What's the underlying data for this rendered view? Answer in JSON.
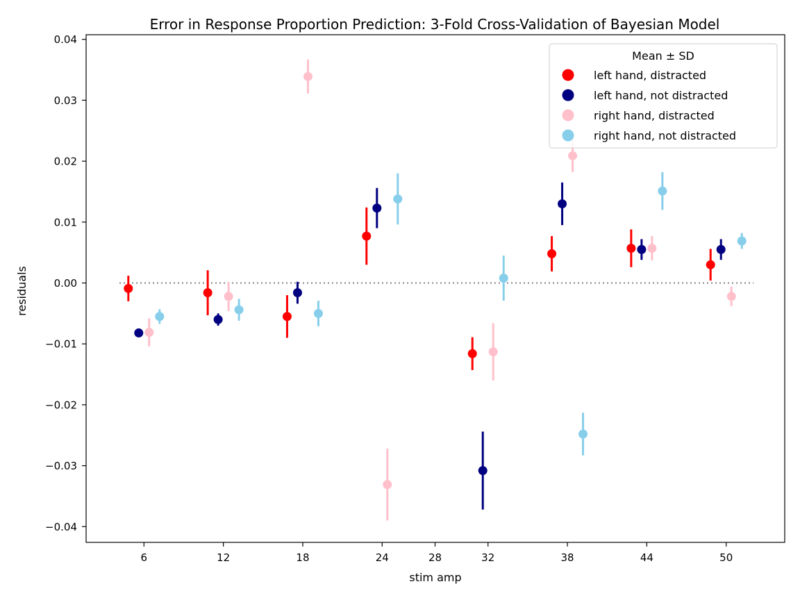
{
  "chart_data": {
    "type": "errorbar",
    "title": "Error in Response Proportion Prediction: 3-Fold Cross-Validation of Bayesian Model",
    "xlabel": "stim amp",
    "ylabel": "residuals",
    "x_ticks": [
      "6",
      "12",
      "18",
      "24",
      "28",
      "32",
      "38",
      "44",
      "50"
    ],
    "y_ticks": [
      "−0.04",
      "−0.03",
      "−0.02",
      "−0.01",
      "0.00",
      "0.01",
      "0.02",
      "0.03",
      "0.04"
    ],
    "y_tick_values": [
      -0.04,
      -0.03,
      -0.02,
      -0.01,
      0.0,
      0.01,
      0.02,
      0.03,
      0.04
    ],
    "ylim": [
      -0.0425,
      0.0405
    ],
    "reference_line": 0.0,
    "legend": {
      "title": "Mean ± SD",
      "position": "top-right"
    },
    "series": [
      {
        "name": "left hand, distracted",
        "color": "#ff0000",
        "x": [
          6,
          12,
          18,
          24,
          32,
          38,
          44,
          50
        ],
        "mean": [
          -0.0009,
          -0.0016,
          -0.0055,
          0.0077,
          -0.0116,
          0.0048,
          0.0057,
          0.003
        ],
        "sd": [
          0.0021,
          0.0037,
          0.0035,
          0.0047,
          0.0027,
          0.0029,
          0.0031,
          0.0026
        ]
      },
      {
        "name": "left hand, not distracted",
        "color": "#000080",
        "x": [
          6,
          12,
          18,
          24,
          32,
          38,
          44,
          50
        ],
        "mean": [
          -0.0082,
          -0.006,
          -0.0016,
          0.0123,
          -0.0308,
          0.013,
          0.0055,
          0.0055
        ],
        "sd": [
          0.0,
          0.001,
          0.0018,
          0.0033,
          0.0064,
          0.0035,
          0.0017,
          0.0017
        ]
      },
      {
        "name": "right hand, distracted",
        "color": "#ffc0cb",
        "x": [
          6,
          12,
          18,
          24,
          32,
          38,
          44,
          50
        ],
        "mean": [
          -0.0081,
          -0.0022,
          0.0339,
          -0.0331,
          -0.0113,
          0.0209,
          0.0057,
          -0.0022
        ],
        "sd": [
          0.0023,
          0.0024,
          0.0028,
          0.0059,
          0.0047,
          0.0027,
          0.002,
          0.0016
        ]
      },
      {
        "name": "right hand, not distracted",
        "color": "#87ceeb",
        "x": [
          6,
          12,
          18,
          24,
          32,
          38,
          44,
          50
        ],
        "mean": [
          -0.0055,
          -0.0044,
          -0.005,
          0.0138,
          0.0008,
          -0.0248,
          0.0151,
          0.0069
        ],
        "sd": [
          0.0012,
          0.0018,
          0.0021,
          0.0042,
          0.0037,
          0.0035,
          0.0031,
          0.0013
        ]
      }
    ]
  }
}
